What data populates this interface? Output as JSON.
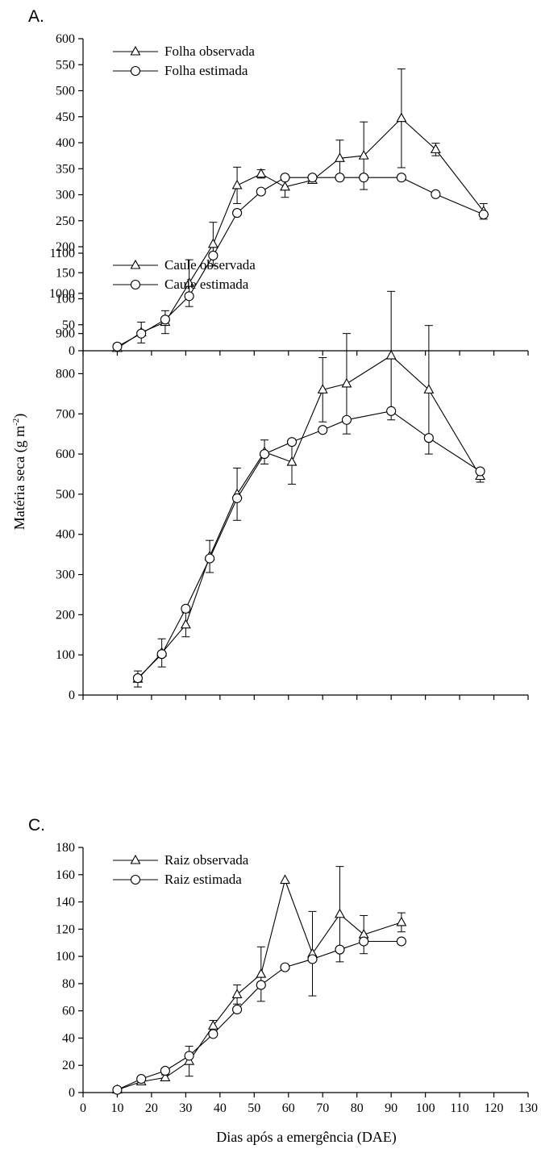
{
  "figure": {
    "ylabel": "Matéria seca (g m⁻²)",
    "xlabel": "Dias após a emergência (DAE)"
  },
  "chart_data": [
    {
      "type": "line",
      "panel_label": "A.",
      "xlim": [
        0,
        130
      ],
      "ylim": [
        0,
        600
      ],
      "yticks": [
        0,
        50,
        100,
        150,
        200,
        250,
        300,
        350,
        400,
        450,
        500,
        550,
        600
      ],
      "legend_position": "top-left",
      "series": [
        {
          "name": "Folha observada",
          "marker": "triangle",
          "x": [
            10,
            17,
            24,
            31,
            38,
            45,
            52,
            59,
            67,
            75,
            82,
            93,
            103,
            117
          ],
          "y": [
            5,
            35,
            55,
            130,
            205,
            318,
            340,
            315,
            328,
            370,
            375,
            447,
            387,
            268
          ],
          "error": [
            0,
            20,
            22,
            45,
            42,
            35,
            8,
            20,
            5,
            35,
            65,
            95,
            12,
            15
          ]
        },
        {
          "name": "Folha estimada",
          "marker": "circle",
          "x": [
            10,
            17,
            24,
            31,
            38,
            45,
            52,
            59,
            67,
            75,
            82,
            93,
            103,
            117
          ],
          "y": [
            8,
            33,
            60,
            105,
            183,
            265,
            306,
            333,
            333,
            333,
            333,
            333,
            301,
            262
          ],
          "error": [
            0,
            0,
            0,
            0,
            0,
            0,
            0,
            0,
            0,
            0,
            0,
            0,
            0,
            0
          ]
        }
      ]
    },
    {
      "type": "line",
      "panel_label": "",
      "xlim": [
        0,
        130
      ],
      "ylim": [
        0,
        1100
      ],
      "yticks": [
        0,
        100,
        200,
        300,
        400,
        500,
        600,
        700,
        800,
        900,
        1000,
        1100
      ],
      "legend_position": "top-left",
      "series": [
        {
          "name": "Caule observada",
          "marker": "triangle",
          "x": [
            16,
            23,
            30,
            37,
            45,
            53,
            61,
            70,
            77,
            90,
            101,
            116
          ],
          "y": [
            40,
            105,
            175,
            345,
            500,
            605,
            580,
            760,
            775,
            845,
            760,
            545
          ],
          "error": [
            20,
            35,
            30,
            40,
            65,
            30,
            55,
            80,
            125,
            160,
            160,
            15
          ]
        },
        {
          "name": "Caule estimada",
          "marker": "circle",
          "x": [
            16,
            23,
            30,
            37,
            45,
            53,
            61,
            70,
            77,
            90,
            101,
            116
          ],
          "y": [
            42,
            102,
            215,
            340,
            490,
            600,
            630,
            660,
            685,
            707,
            640,
            557
          ],
          "error": [
            0,
            0,
            0,
            0,
            0,
            0,
            0,
            0,
            0,
            0,
            0,
            0
          ]
        }
      ]
    },
    {
      "type": "line",
      "panel_label": "C.",
      "xlim": [
        0,
        130
      ],
      "ylim": [
        0,
        180
      ],
      "xticks": [
        0,
        10,
        20,
        30,
        40,
        50,
        60,
        70,
        80,
        90,
        100,
        110,
        120,
        130
      ],
      "yticks": [
        0,
        20,
        40,
        60,
        80,
        100,
        120,
        140,
        160,
        180
      ],
      "legend_position": "top-left",
      "series": [
        {
          "name": "Raiz observada",
          "marker": "triangle",
          "x": [
            10,
            17,
            24,
            31,
            38,
            45,
            52,
            59,
            67,
            75,
            82,
            93
          ],
          "y": [
            2,
            8,
            11,
            23,
            49,
            72,
            87,
            156,
            102,
            131,
            116,
            125
          ],
          "error": [
            0,
            0,
            2,
            11,
            4,
            7,
            20,
            0,
            31,
            35,
            14,
            7
          ]
        },
        {
          "name": "Raiz estimada",
          "marker": "circle",
          "x": [
            10,
            17,
            24,
            31,
            38,
            45,
            52,
            59,
            67,
            75,
            82,
            93
          ],
          "y": [
            2,
            10,
            16,
            27,
            43,
            61,
            79,
            92,
            98,
            105,
            111,
            111
          ],
          "error": [
            0,
            0,
            0,
            0,
            0,
            0,
            0,
            0,
            0,
            0,
            0,
            0
          ]
        }
      ]
    }
  ]
}
